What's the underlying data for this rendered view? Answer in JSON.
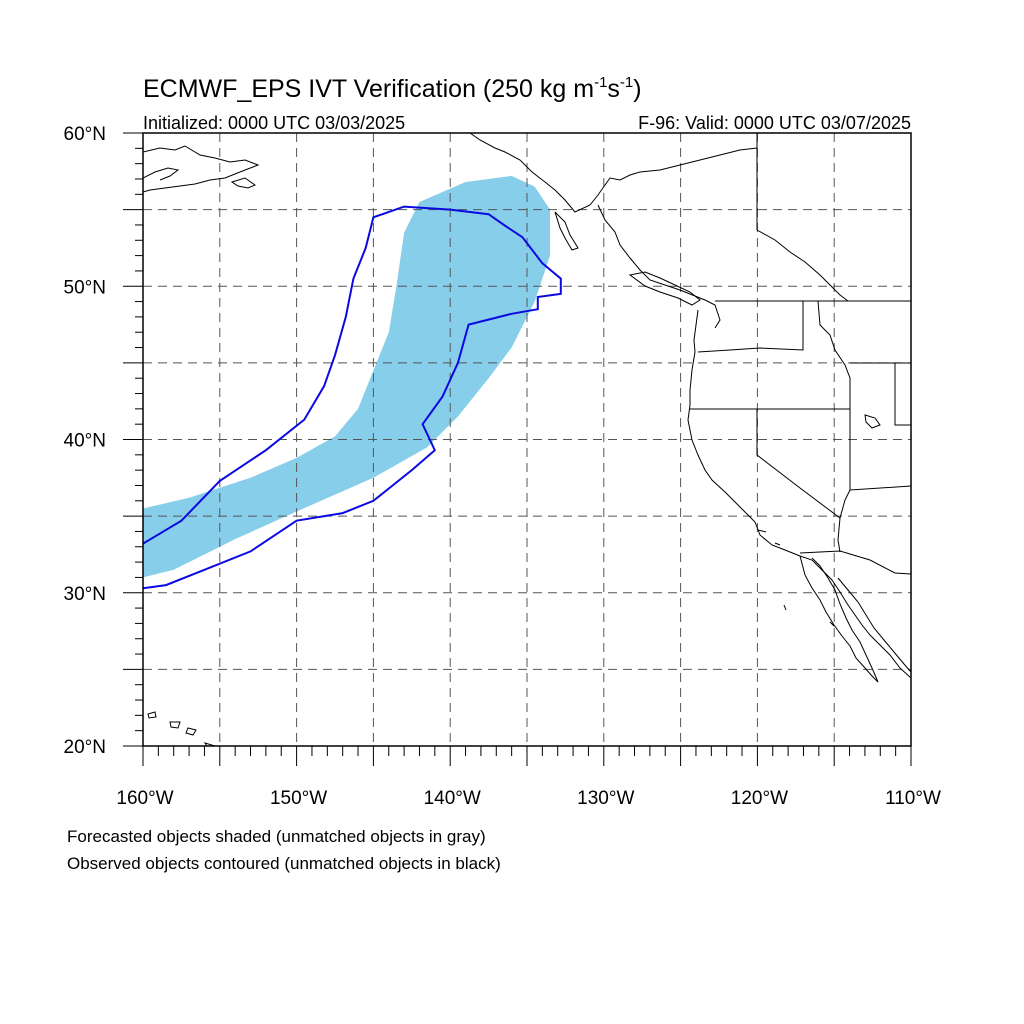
{
  "title": {
    "main": "ECMWF_EPS IVT Verification (250 kg m",
    "sup1": "-1",
    "mid": "s",
    "sup2": "-1",
    "end": ")"
  },
  "subtitle_left": "Initialized: 0000 UTC 03/03/2025",
  "subtitle_right": "F-96: Valid: 0000 UTC 03/07/2025",
  "lat_labels": [
    "60°N",
    "50°N",
    "40°N",
    "30°N",
    "20°N"
  ],
  "lon_labels": [
    "160°W",
    "150°W",
    "140°W",
    "130°W",
    "120°W",
    "110°W"
  ],
  "notes": [
    "Forecasted objects shaded (unmatched objects in gray)",
    "Observed objects contoured (unmatched objects in black)"
  ],
  "colors": {
    "forecast_fill": "#87ceeb",
    "observed_contour": "#0a0ae0"
  },
  "map_extent": {
    "lon_min": -160,
    "lon_max": -110,
    "lat_min": 20,
    "lat_max": 60
  },
  "forecast_object": [
    [
      -160,
      31
    ],
    [
      -160,
      35.5
    ],
    [
      -157,
      36.2
    ],
    [
      -153,
      37.5
    ],
    [
      -150,
      38.8
    ],
    [
      -147.5,
      40.2
    ],
    [
      -146,
      42
    ],
    [
      -145,
      44.5
    ],
    [
      -144,
      47
    ],
    [
      -143.5,
      50
    ],
    [
      -143,
      53.5
    ],
    [
      -142,
      55.5
    ],
    [
      -139,
      56.8
    ],
    [
      -136,
      57.2
    ],
    [
      -134.5,
      56.5
    ],
    [
      -133.5,
      55
    ],
    [
      -133.5,
      52
    ],
    [
      -134.5,
      49
    ],
    [
      -136,
      46
    ],
    [
      -137.5,
      44
    ],
    [
      -139.5,
      41.5
    ],
    [
      -141.5,
      39.5
    ],
    [
      -145,
      37.5
    ],
    [
      -150,
      35.3
    ],
    [
      -154,
      33.5
    ],
    [
      -158,
      31.5
    ],
    [
      -160,
      31
    ]
  ],
  "observed_object": [
    [
      -160,
      30.3
    ],
    [
      -158.5,
      30.5
    ],
    [
      -156,
      31.5
    ],
    [
      -153,
      32.7
    ],
    [
      -150,
      34.7
    ],
    [
      -147,
      35.2
    ],
    [
      -145,
      36
    ],
    [
      -142.5,
      38
    ],
    [
      -141,
      39.3
    ],
    [
      -141.8,
      41
    ],
    [
      -140.5,
      42.8
    ],
    [
      -139.5,
      45
    ],
    [
      -138.8,
      47.5
    ],
    [
      -136,
      48.2
    ],
    [
      -134.3,
      48.5
    ],
    [
      -134.3,
      49.3
    ],
    [
      -132.8,
      49.5
    ],
    [
      -132.8,
      50.5
    ],
    [
      -134,
      51.5
    ],
    [
      -135.3,
      53.2
    ],
    [
      -136.5,
      54
    ],
    [
      -137.5,
      54.7
    ],
    [
      -140,
      55
    ],
    [
      -143,
      55.2
    ],
    [
      -145,
      54.5
    ],
    [
      -145.5,
      52.5
    ],
    [
      -146.3,
      50.5
    ],
    [
      -146.8,
      48
    ],
    [
      -147.5,
      45.5
    ],
    [
      -148.2,
      43.5
    ],
    [
      -149.5,
      41.3
    ],
    [
      -152,
      39.3
    ],
    [
      -155,
      37.3
    ],
    [
      -157.5,
      34.7
    ],
    [
      -160,
      33.2
    ]
  ]
}
